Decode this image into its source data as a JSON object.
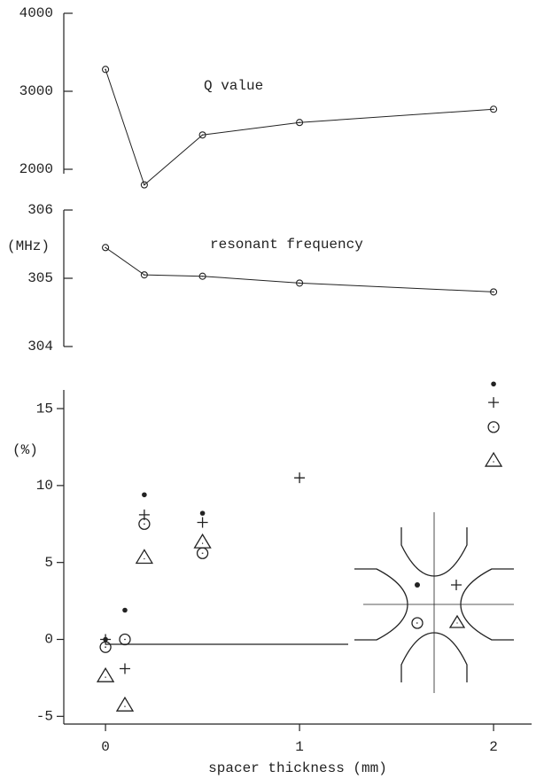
{
  "chart_data": [
    {
      "type": "line",
      "annotation": "Q value",
      "color": "#333",
      "x": [
        0,
        0.2,
        0.5,
        1,
        2
      ],
      "values": [
        3280,
        1800,
        2440,
        2600,
        2770
      ],
      "xlim": [
        -0.215,
        2.196
      ],
      "ylim": [
        1750,
        4000
      ],
      "yticks": [
        2000,
        3000,
        4000
      ]
    },
    {
      "type": "line",
      "annotation": "resonant frequency",
      "y_label": "(MHz)",
      "color": "#222",
      "x": [
        0,
        0.2,
        0.5,
        1,
        2
      ],
      "values": [
        305.45,
        305.05,
        305.03,
        304.93,
        304.8
      ],
      "xlim": [
        -0.215,
        2.196
      ],
      "ylim": [
        304,
        306
      ],
      "yticks": [
        304,
        305,
        306
      ]
    },
    {
      "type": "scatter",
      "y_label": "(%)",
      "x_label": "spacer thickness (mm)",
      "color": "#222",
      "x": [
        0,
        0.1,
        0.2,
        0.5,
        1,
        2
      ],
      "series": [
        {
          "marker": "dot",
          "values": [
            0.0,
            1.9,
            9.4,
            8.2,
            null,
            16.6
          ]
        },
        {
          "marker": "plus",
          "values": [
            0.0,
            -1.9,
            8.1,
            7.6,
            10.5,
            15.4
          ]
        },
        {
          "marker": "circle",
          "values": [
            -0.5,
            0.0,
            7.5,
            5.6,
            null,
            13.8
          ]
        },
        {
          "marker": "triangle",
          "values": [
            -2.4,
            -4.3,
            5.3,
            6.3,
            null,
            11.6
          ]
        }
      ],
      "xlim": [
        -0.215,
        2.196
      ],
      "xticks": [
        0,
        1,
        2
      ],
      "ylim": [
        -5.5,
        16.5
      ],
      "yticks": [
        -5,
        0,
        5,
        10,
        15
      ]
    }
  ]
}
